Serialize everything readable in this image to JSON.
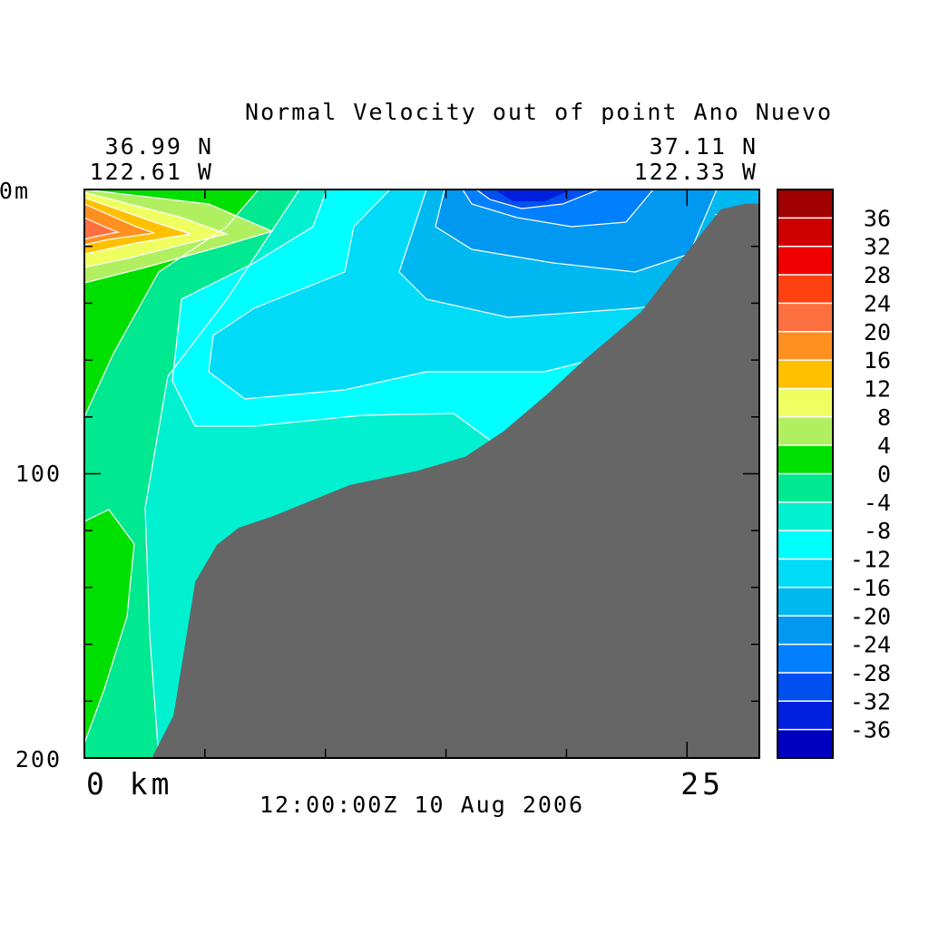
{
  "chart_data": {
    "type": "contour",
    "title": "Normal Velocity out of point Ano Nuevo",
    "subtitle": "12:00:00Z  10 Aug 2006",
    "start_point": {
      "lat": "36.99 N",
      "lon": "122.61 W"
    },
    "end_point": {
      "lat": "37.11 N",
      "lon": "122.33 W"
    },
    "x_axis": {
      "range": [
        0,
        28
      ],
      "tick_labels": [
        {
          "value": 0,
          "label": "0 km"
        },
        {
          "value": 25,
          "label": "25"
        }
      ],
      "minor_ticks": [
        0,
        5,
        10,
        15,
        20,
        25
      ]
    },
    "y_axis": {
      "range": [
        0,
        200
      ],
      "inverted": true,
      "tick_labels": [
        {
          "value": 0,
          "label": "0m"
        },
        {
          "value": 100,
          "label": "100"
        },
        {
          "value": 200,
          "label": "200"
        }
      ],
      "minor_ticks": [
        20,
        40,
        60,
        80,
        120,
        140,
        160,
        180
      ]
    },
    "grid": false,
    "colorbar": {
      "placement": "right",
      "levels": [
        -40,
        -36,
        -32,
        -28,
        -24,
        -20,
        -16,
        -12,
        -8,
        -4,
        0,
        4,
        8,
        12,
        16,
        20,
        24,
        28,
        32,
        36,
        40
      ],
      "tick_labels": [
        "-36",
        "-32",
        "-28",
        "-24",
        "-20",
        "-16",
        "-12",
        "-8",
        "-4",
        "0",
        "4",
        "8",
        "12",
        "16",
        "20",
        "24",
        "28",
        "32",
        "36"
      ],
      "colors": [
        "#0000c0",
        "#0020e0",
        "#0050f0",
        "#0080ff",
        "#0098f0",
        "#00b8f0",
        "#00dcf8",
        "#00ffff",
        "#00f0d0",
        "#00e890",
        "#00e000",
        "#b0f060",
        "#f0ff60",
        "#ffc000",
        "#ff9020",
        "#ff7040",
        "#ff4010",
        "#f00000",
        "#d00000",
        "#a00000"
      ]
    },
    "seafloor_color": "#666666",
    "bathymetry_km_m": [
      [
        2.8,
        200
      ],
      [
        3.7,
        185
      ],
      [
        4.6,
        138
      ],
      [
        5.5,
        125
      ],
      [
        6.4,
        119
      ],
      [
        7.8,
        115
      ],
      [
        11.0,
        104
      ],
      [
        13.8,
        99
      ],
      [
        15.8,
        94
      ],
      [
        17.4,
        85
      ],
      [
        19.2,
        72
      ],
      [
        20.6,
        61
      ],
      [
        23.1,
        43
      ],
      [
        25.0,
        22
      ],
      [
        26.4,
        7
      ],
      [
        27.4,
        5
      ],
      [
        28,
        5
      ]
    ]
  }
}
